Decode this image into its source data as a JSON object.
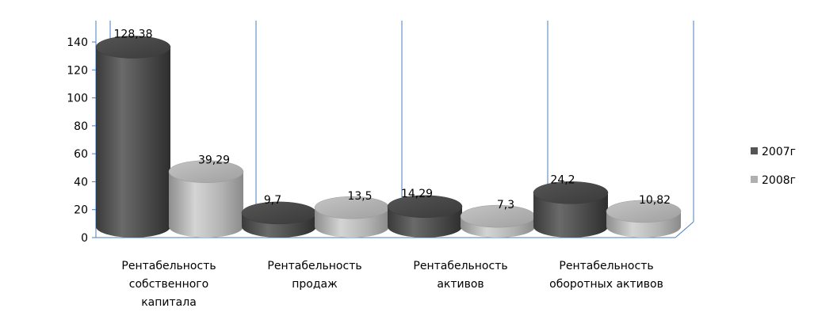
{
  "chart_data": {
    "type": "bar",
    "style": "3d-cylinder",
    "categories": [
      [
        "Рентабельность",
        "собственного",
        "капитала"
      ],
      [
        "Рентабельность",
        "продаж"
      ],
      [
        "Рентабельность",
        "активов"
      ],
      [
        "Рентабельность",
        "оборотных активов"
      ]
    ],
    "series": [
      {
        "name": "2007г",
        "values": [
          128.38,
          9.7,
          14.29,
          24.2
        ],
        "labels": [
          "128,38",
          "9,7",
          "14,29",
          "24,2"
        ],
        "color": "#555555"
      },
      {
        "name": "2008г",
        "values": [
          39.29,
          13.5,
          7.3,
          10.82
        ],
        "labels": [
          "39,29",
          "13,5",
          "7,3",
          "10,82"
        ],
        "color": "#b0b0b0"
      }
    ],
    "yticks": [
      "0",
      "20",
      "40",
      "60",
      "80",
      "100",
      "120",
      "140"
    ],
    "ylim": [
      0,
      140
    ],
    "legend_position": "right",
    "grid": false,
    "title": "",
    "xlabel": "",
    "ylabel": ""
  }
}
